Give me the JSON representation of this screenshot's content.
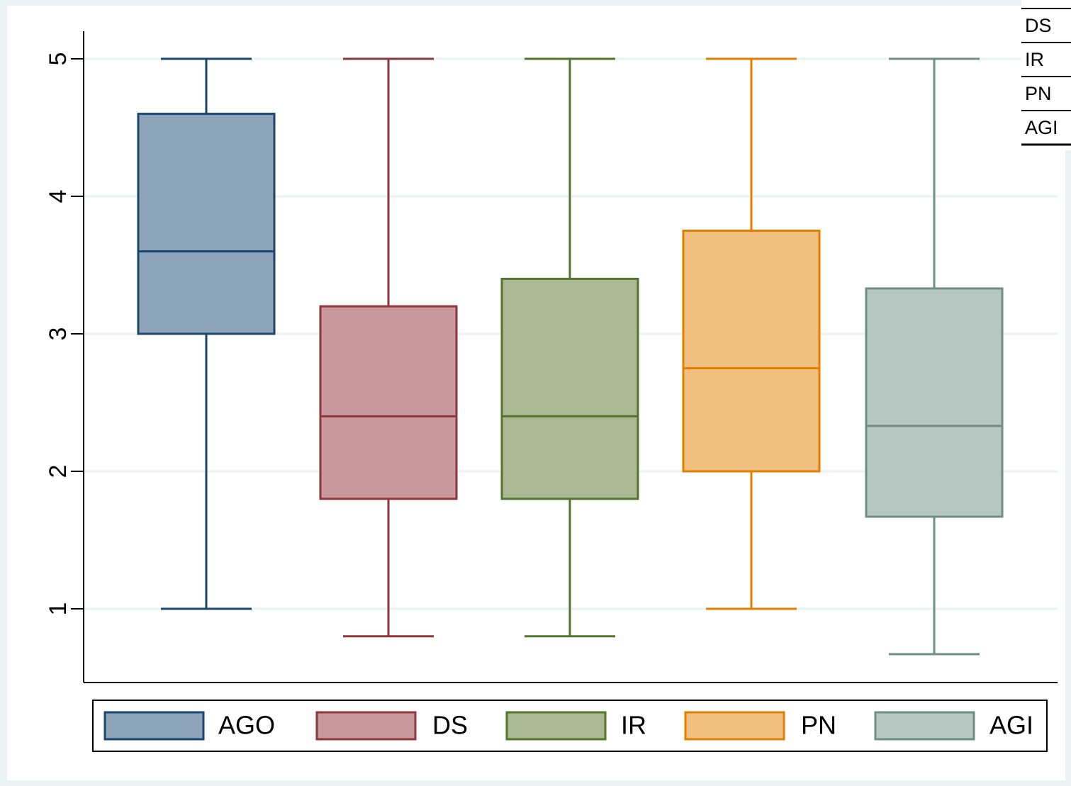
{
  "chart_data": {
    "type": "box",
    "title": "",
    "xlabel": "",
    "ylabel": "",
    "ylim": [
      0.48,
      5.2
    ],
    "yticks": [
      1,
      2,
      3,
      4,
      5
    ],
    "grid": true,
    "legend_position": "bottom",
    "series": [
      {
        "name": "AGO",
        "color": "#1a476f",
        "fill": "#8ea4b9",
        "whisker_low": 1.0,
        "q1": 3.0,
        "median": 3.6,
        "q3": 4.6,
        "whisker_high": 5.0
      },
      {
        "name": "DS",
        "color": "#90353b",
        "fill": "#c99a9d",
        "whisker_low": 0.8,
        "q1": 1.8,
        "median": 2.4,
        "q3": 3.2,
        "whisker_high": 5.0
      },
      {
        "name": "IR",
        "color": "#55752f",
        "fill": "#aab994",
        "whisker_low": 0.8,
        "q1": 1.8,
        "median": 2.4,
        "q3": 3.4,
        "whisker_high": 5.0
      },
      {
        "name": "PN",
        "color": "#e37e00",
        "fill": "#f1bf80",
        "whisker_low": 1.0,
        "q1": 2.0,
        "median": 2.75,
        "q3": 3.75,
        "whisker_high": 5.0
      },
      {
        "name": "AGI",
        "color": "#6e8e84",
        "fill": "#b7c7c1",
        "whisker_low": 0.67,
        "q1": 1.67,
        "median": 2.33,
        "q3": 3.33,
        "whisker_high": 5.0
      }
    ]
  },
  "overlay_labels": [
    "DS",
    "IR",
    "PN",
    "AGI"
  ]
}
